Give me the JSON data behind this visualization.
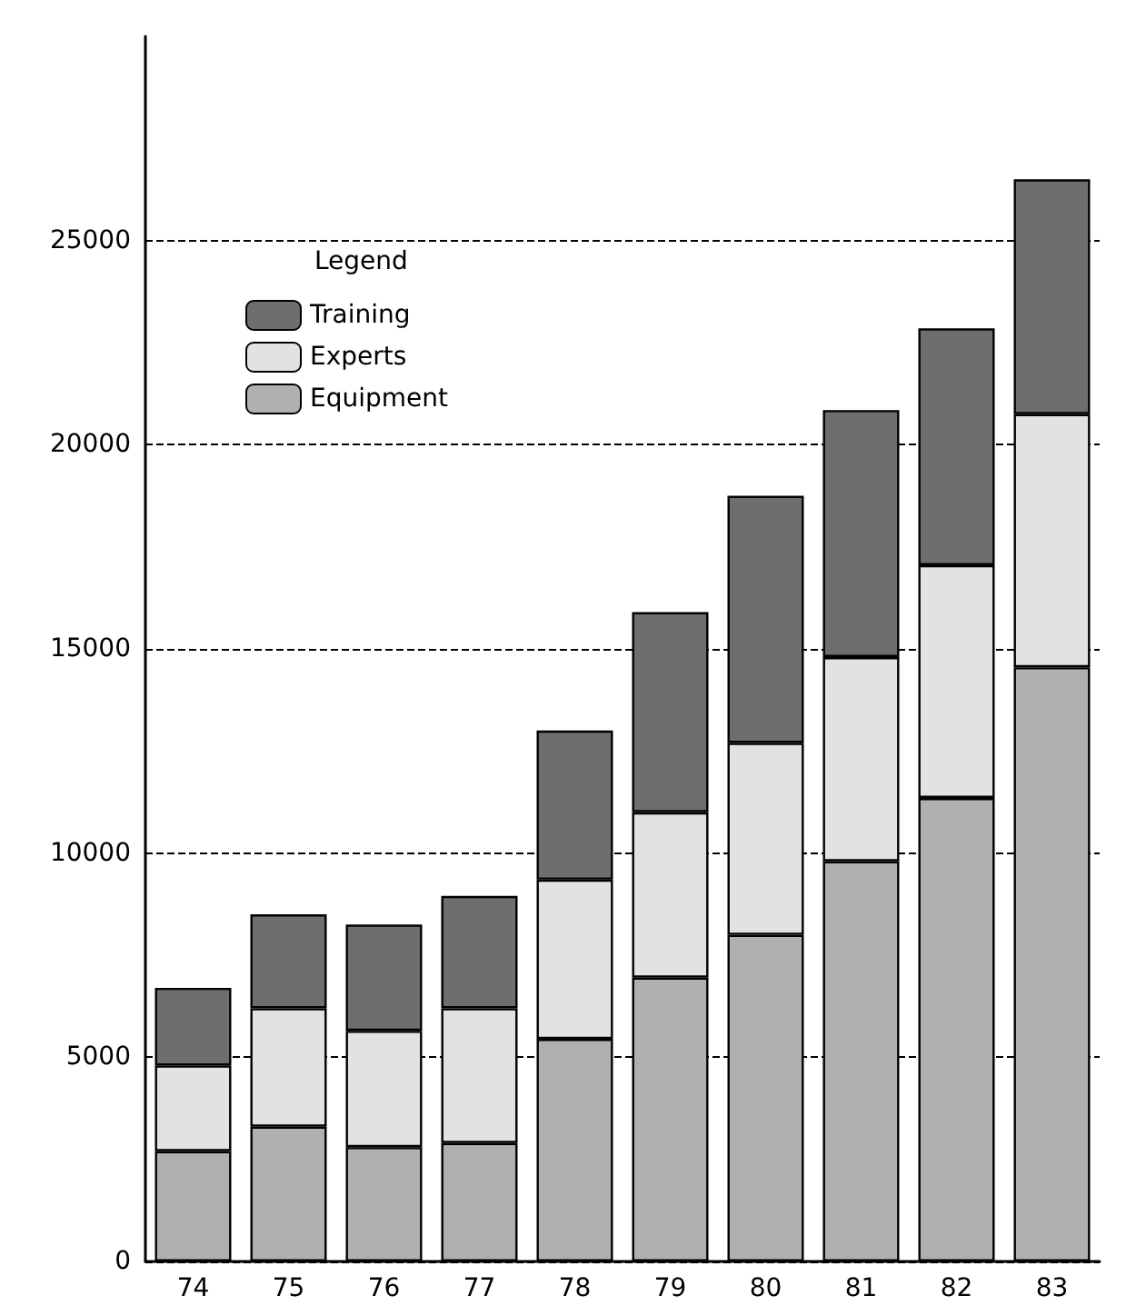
{
  "chart_data": {
    "type": "bar",
    "stacked": true,
    "categories": [
      "74",
      "75",
      "76",
      "77",
      "78",
      "79",
      "80",
      "81",
      "82",
      "83"
    ],
    "series": [
      {
        "name": "Equipment",
        "color": "#b0b0b0",
        "values": [
          2700,
          3300,
          2800,
          2900,
          5450,
          6950,
          8000,
          9800,
          11350,
          14550
        ]
      },
      {
        "name": "Experts",
        "color": "#e2e2e2",
        "values": [
          2100,
          2900,
          2850,
          3300,
          3900,
          4050,
          4700,
          5000,
          5700,
          6200
        ]
      },
      {
        "name": "Training",
        "color": "#6e6e6e",
        "values": [
          1900,
          2300,
          2600,
          2750,
          3650,
          4900,
          6050,
          6050,
          5800,
          5750
        ]
      }
    ],
    "legend_title": "Legend",
    "legend": "top left",
    "ylim": [
      0,
      30000
    ],
    "yticks": [
      0,
      5000,
      10000,
      15000,
      20000,
      25000
    ],
    "grid": "y",
    "line_style": "dashed"
  }
}
